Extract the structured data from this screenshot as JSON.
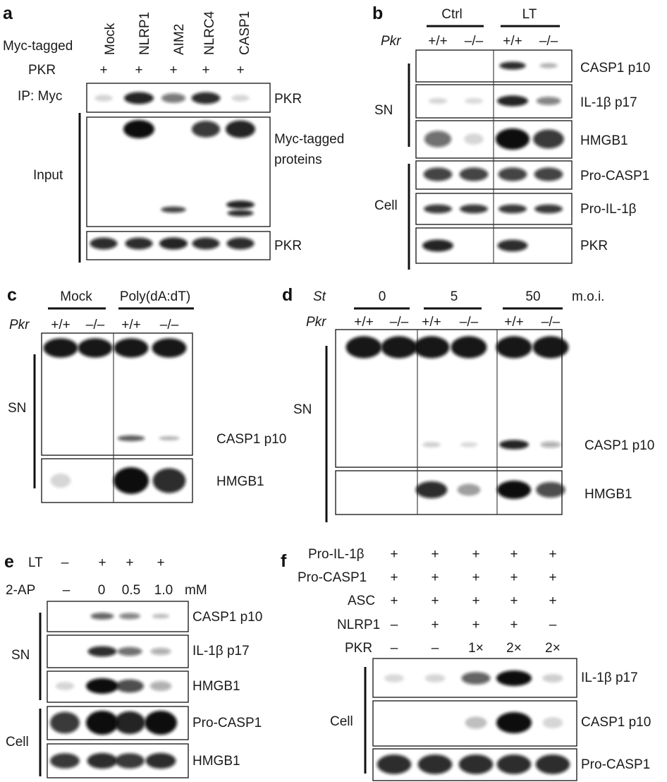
{
  "panels": {
    "a": {
      "letter": "a",
      "row_header": "Myc-tagged",
      "lanes": [
        "Mock",
        "NLRP1",
        "AIM2",
        "NLRC4",
        "CASP1"
      ],
      "pkr_label": "PKR",
      "pkr_marks": [
        "+",
        "+",
        "+",
        "+",
        "+"
      ],
      "ip_label": "IP: Myc",
      "input_label": "Input",
      "blots": [
        {
          "label": "PKR",
          "intensities": [
            0.06,
            0.9,
            0.5,
            0.85,
            0.04
          ]
        },
        {
          "label": "Myc-tagged\nproteins",
          "intensities": [
            0.0,
            1.0,
            0.0,
            0.8,
            0.9
          ]
        },
        {
          "label": "PKR",
          "intensities": [
            0.85,
            0.85,
            0.9,
            0.85,
            0.85
          ]
        }
      ]
    },
    "b": {
      "letter": "b",
      "groups": [
        "Ctrl",
        "LT"
      ],
      "genotype_label": "Pkr",
      "genotypes": [
        "+/+",
        "–/–",
        "+/+",
        "–/–"
      ],
      "sn_label": "SN",
      "cell_label": "Cell",
      "blots": [
        {
          "label": "CASP1 p10",
          "intensities": [
            0.0,
            0.0,
            0.85,
            0.2
          ]
        },
        {
          "label": "IL-1β p17",
          "intensities": [
            0.05,
            0.03,
            0.9,
            0.45
          ]
        },
        {
          "label": "HMGB1",
          "intensities": [
            0.55,
            0.05,
            1.0,
            0.8
          ]
        },
        {
          "label": "Pro-CASP1",
          "intensities": [
            0.75,
            0.75,
            0.75,
            0.75
          ]
        },
        {
          "label": "Pro-IL-1β",
          "intensities": [
            0.8,
            0.8,
            0.8,
            0.8
          ]
        },
        {
          "label": "PKR",
          "intensities": [
            0.9,
            0.0,
            0.85,
            0.0
          ]
        }
      ]
    },
    "c": {
      "letter": "c",
      "groups": [
        "Mock",
        "Poly(dA:dT)"
      ],
      "genotype_label": "Pkr",
      "genotypes": [
        "+/+",
        "–/–",
        "+/+",
        "–/–"
      ],
      "sn_label": "SN",
      "blots": [
        {
          "label": "CASP1 p10",
          "intensities": [
            0.0,
            0.0,
            0.65,
            0.2
          ]
        },
        {
          "label": "HMGB1",
          "intensities": [
            0.05,
            0.0,
            1.0,
            0.85
          ]
        }
      ]
    },
    "d": {
      "letter": "d",
      "treatment_label": "St",
      "groups": [
        "0",
        "5",
        "50"
      ],
      "unit": "m.o.i.",
      "genotype_label": "Pkr",
      "genotypes": [
        "+/+",
        "–/–",
        "+/+",
        "–/–",
        "+/+",
        "–/–"
      ],
      "sn_label": "SN",
      "blots": [
        {
          "label": "CASP1 p10",
          "intensities": [
            0.0,
            0.0,
            0.08,
            0.03,
            0.9,
            0.25
          ]
        },
        {
          "label": "HMGB1",
          "intensities": [
            0.0,
            0.0,
            0.85,
            0.3,
            1.0,
            0.7
          ]
        }
      ]
    },
    "e": {
      "letter": "e",
      "lt_label": "LT",
      "lt_marks": [
        "–",
        "+",
        "+",
        "+"
      ],
      "ap_label": "2-AP",
      "ap_marks": [
        "–",
        "0",
        "0.5",
        "1.0"
      ],
      "unit": "mM",
      "sn_label": "SN",
      "cell_label": "Cell",
      "blots": [
        {
          "label": "CASP1 p10",
          "intensities": [
            0.0,
            0.6,
            0.45,
            0.15
          ]
        },
        {
          "label": "IL-1β p17",
          "intensities": [
            0.0,
            0.85,
            0.55,
            0.25
          ]
        },
        {
          "label": "HMGB1",
          "intensities": [
            0.05,
            1.0,
            0.7,
            0.25
          ]
        },
        {
          "label": "Pro-CASP1",
          "intensities": [
            0.8,
            1.0,
            0.9,
            1.0
          ]
        },
        {
          "label": "HMGB1",
          "intensities": [
            0.8,
            0.85,
            0.8,
            0.85
          ]
        }
      ]
    },
    "f": {
      "letter": "f",
      "rows": [
        {
          "label": "Pro-IL-1β",
          "marks": [
            "+",
            "+",
            "+",
            "+",
            "+"
          ]
        },
        {
          "label": "Pro-CASP1",
          "marks": [
            "+",
            "+",
            "+",
            "+",
            "+"
          ]
        },
        {
          "label": "ASC",
          "marks": [
            "+",
            "+",
            "+",
            "+",
            "+"
          ]
        },
        {
          "label": "NLRP1",
          "marks": [
            "–",
            "+",
            "+",
            "+",
            "–"
          ]
        },
        {
          "label": "PKR",
          "marks": [
            "–",
            "–",
            "1×",
            "2×",
            "2×"
          ]
        }
      ],
      "cell_label": "Cell",
      "blots": [
        {
          "label": "IL-1β p17",
          "intensities": [
            0.03,
            0.05,
            0.6,
            1.0,
            0.08
          ]
        },
        {
          "label": "CASP1 p10",
          "intensities": [
            0.0,
            0.0,
            0.15,
            1.0,
            0.05
          ]
        },
        {
          "label": "Pro-CASP1",
          "intensities": [
            0.85,
            0.85,
            0.85,
            0.85,
            0.85
          ]
        }
      ]
    }
  }
}
